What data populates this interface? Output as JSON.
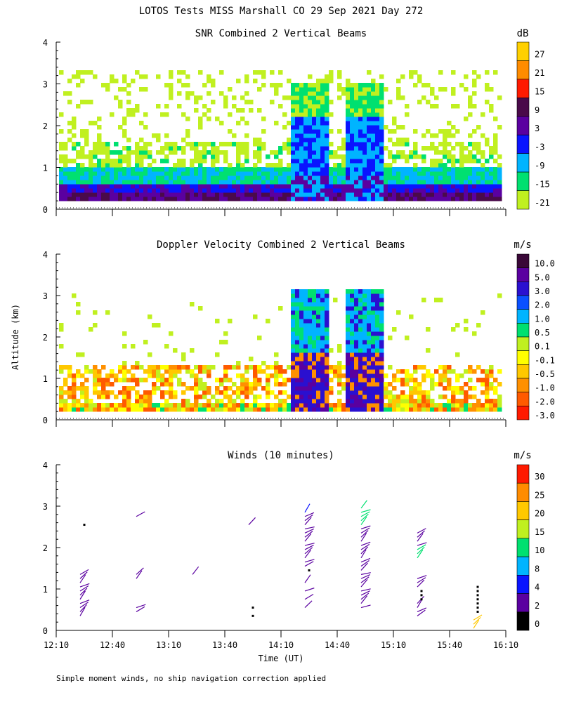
{
  "figure": {
    "title": "LOTOS Tests MISS Marshall CO  29 Sep 2021 Day 272",
    "ylabel": "Altitude (km)",
    "xlabel": "Time (UT)",
    "footnote": "Simple moment winds, no ship navigation correction applied"
  },
  "chart_data": [
    {
      "type": "heatmap",
      "title": "SNR Combined 2 Vertical Beams",
      "x_ticks": [
        "12:10",
        "12:40",
        "13:10",
        "13:40",
        "14:10",
        "14:40",
        "15:10",
        "15:40",
        "16:10"
      ],
      "x_range_minutes_utc": [
        730,
        970
      ],
      "ylim": [
        0,
        4
      ],
      "y_ticks": [
        "0",
        "1",
        "2",
        "3",
        "4"
      ],
      "colorbar": {
        "unit": "dB",
        "labels": [
          "27",
          "21",
          "15",
          "9",
          "3",
          "-3",
          "-9",
          "-15",
          "-21"
        ],
        "colors": [
          "#ffd000",
          "#ff8c00",
          "#ff1a00",
          "#4a0a4a",
          "#5a00a0",
          "#0a14ff",
          "#00b4ff",
          "#00e070",
          "#c0f020"
        ]
      }
    },
    {
      "type": "heatmap",
      "title": "Doppler Velocity Combined 2 Vertical Beams",
      "x_ticks": [
        "12:10",
        "12:40",
        "13:10",
        "13:40",
        "14:10",
        "14:40",
        "15:10",
        "15:40",
        "16:10"
      ],
      "x_range_minutes_utc": [
        730,
        970
      ],
      "ylim": [
        0,
        4
      ],
      "y_ticks": [
        "0",
        "1",
        "2",
        "3",
        "4"
      ],
      "colorbar": {
        "unit": "m/s",
        "labels": [
          "10.0",
          "5.0",
          "3.0",
          "2.0",
          "1.0",
          "0.5",
          "0.1",
          "-0.1",
          "-0.5",
          "-1.0",
          "-2.0",
          "-3.0"
        ],
        "colors": [
          "#3a0838",
          "#5a00a0",
          "#2a10d0",
          "#0a50ff",
          "#00b4ff",
          "#00e070",
          "#c0f020",
          "#ffff00",
          "#ffc800",
          "#ff9000",
          "#ff5a00",
          "#ff1a00"
        ]
      }
    },
    {
      "type": "scatter",
      "title": "Winds (10 minutes)",
      "x_ticks": [
        "12:10",
        "12:40",
        "13:10",
        "13:40",
        "14:10",
        "14:40",
        "15:10",
        "15:40",
        "16:10"
      ],
      "x_range_minutes_utc": [
        730,
        970
      ],
      "ylim": [
        0,
        4
      ],
      "y_ticks": [
        "0",
        "1",
        "2",
        "3",
        "4"
      ],
      "colorbar": {
        "unit": "m/s",
        "labels": [
          "30",
          "25",
          "20",
          "15",
          "10",
          "8",
          "4",
          "2",
          "0"
        ],
        "colors": [
          "#ff1a00",
          "#ff8c00",
          "#ffc800",
          "#c0f020",
          "#00e070",
          "#00b4ff",
          "#0a14ff",
          "#5a00a0",
          "#000000"
        ]
      },
      "wind_profiles": [
        {
          "time_min": 745,
          "altitudes_km": [
            0.35,
            0.45,
            0.55,
            0.65,
            0.75,
            0.85,
            0.95,
            1.05,
            1.15,
            1.25,
            1.35,
            2.55
          ],
          "speeds_ms": [
            3,
            3,
            3,
            3,
            3,
            3,
            3,
            3,
            3,
            3,
            3,
            1
          ]
        },
        {
          "time_min": 775,
          "altitudes_km": [
            0.45,
            0.55,
            1.25,
            1.35,
            2.75
          ],
          "speeds_ms": [
            3,
            3,
            3,
            3,
            3
          ]
        },
        {
          "time_min": 805,
          "altitudes_km": [
            1.35
          ],
          "speeds_ms": [
            3
          ]
        },
        {
          "time_min": 835,
          "altitudes_km": [
            0.35,
            0.55,
            2.55
          ],
          "speeds_ms": [
            1,
            1,
            3
          ]
        },
        {
          "time_min": 865,
          "altitudes_km": [
            0.55,
            0.75,
            0.95,
            1.15,
            1.45,
            1.55,
            1.65,
            1.75,
            1.85,
            1.95,
            2.05,
            2.15,
            2.25,
            2.35,
            2.45,
            2.55,
            2.65,
            2.75,
            2.85
          ],
          "speeds_ms": [
            3,
            3,
            3,
            3,
            1,
            3,
            3,
            3,
            3,
            3,
            3,
            3,
            3,
            3,
            3,
            3,
            3,
            3,
            6
          ]
        },
        {
          "time_min": 895,
          "altitudes_km": [
            0.55,
            0.65,
            0.75,
            0.85,
            0.95,
            1.05,
            1.15,
            1.25,
            1.35,
            1.45,
            1.55,
            1.65,
            1.75,
            1.85,
            1.95,
            2.05,
            2.15,
            2.25,
            2.35,
            2.45,
            2.55,
            2.65,
            2.75,
            2.85,
            2.95
          ],
          "speeds_ms": [
            3,
            3,
            3,
            3,
            3,
            3,
            3,
            3,
            3,
            3,
            3,
            3,
            3,
            3,
            3,
            3,
            3,
            3,
            3,
            3,
            12,
            12,
            12,
            12,
            12
          ]
        },
        {
          "time_min": 925,
          "altitudes_km": [
            0.35,
            0.45,
            0.55,
            0.65,
            0.75,
            0.85,
            0.95,
            1.05,
            1.15,
            1.25,
            1.75,
            1.85,
            1.95,
            2.05,
            2.15,
            2.25,
            2.35
          ],
          "speeds_ms": [
            3,
            3,
            3,
            3,
            1,
            1,
            1,
            3,
            3,
            3,
            12,
            12,
            12,
            3,
            3,
            3,
            3
          ]
        },
        {
          "time_min": 955,
          "altitudes_km": [
            0.05,
            0.15,
            0.25,
            0.45,
            0.55,
            0.65,
            0.75,
            0.85,
            0.95,
            1.05
          ],
          "speeds_ms": [
            22,
            22,
            22,
            1,
            1,
            1,
            1,
            1,
            1,
            1
          ]
        }
      ]
    }
  ]
}
